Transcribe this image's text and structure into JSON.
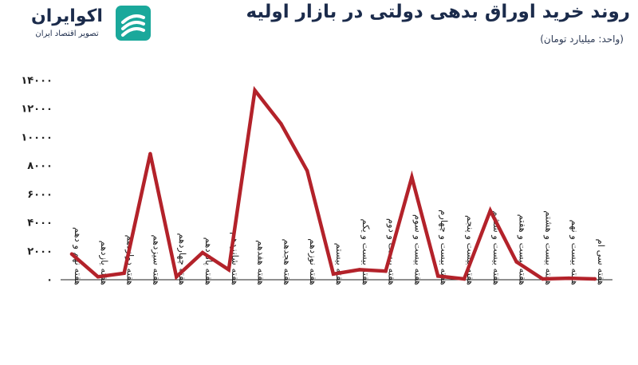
{
  "header": {
    "brand_name": "اکوایران",
    "brand_sub": "تصویر اقتصاد ایران",
    "title": "روند خرید اوراق بدهی دولتی در بازار اولیه",
    "unit": "(واحد: میلیارد تومان)"
  },
  "colors": {
    "line": "#b3222a",
    "text": "#1b2b4b",
    "axis": "#222222"
  },
  "chart_data": {
    "type": "line",
    "title": "روند خرید اوراق بدهی دولتی در بازار اولیه",
    "ylabel": "",
    "xlabel": "",
    "ylim": [
      0,
      14000
    ],
    "yticks": [
      0,
      2000,
      4000,
      6000,
      8000,
      10000,
      12000,
      14000
    ],
    "ytick_labels": [
      "۰",
      "۲۰۰۰",
      "۴۰۰۰",
      "۶۰۰۰",
      "۸۰۰۰",
      "۱۰۰۰۰",
      "۱۲۰۰۰",
      "۱۴۰۰۰"
    ],
    "grid": false,
    "categories": [
      "هفته نهم و دهم",
      "هفته یازدهم",
      "هفته دوازدهم",
      "هفته سیزدهم",
      "هفته چهاردهم",
      "هفته پانزدهم",
      "هفته شانزدهم",
      "هفته هفدهم",
      "هفته هجدهم",
      "هفته نوزدهم",
      "هفته بیستم",
      "هفته بیست و یکم",
      "هفته بیست و دوم",
      "هفته بیست و سوم",
      "هفته بیست و چهارم",
      "هفته بیست و پنجم",
      "هفته بیست و ششم",
      "هفته بیست و هفتم",
      "هفته بیست و هشتم",
      "هفته بیست و نهم",
      "هفته سی ام"
    ],
    "values": [
      1750,
      150,
      400,
      8800,
      150,
      1850,
      650,
      13250,
      10900,
      7600,
      350,
      650,
      550,
      7150,
      200,
      0,
      4800,
      1200,
      0,
      50,
      0
    ]
  }
}
